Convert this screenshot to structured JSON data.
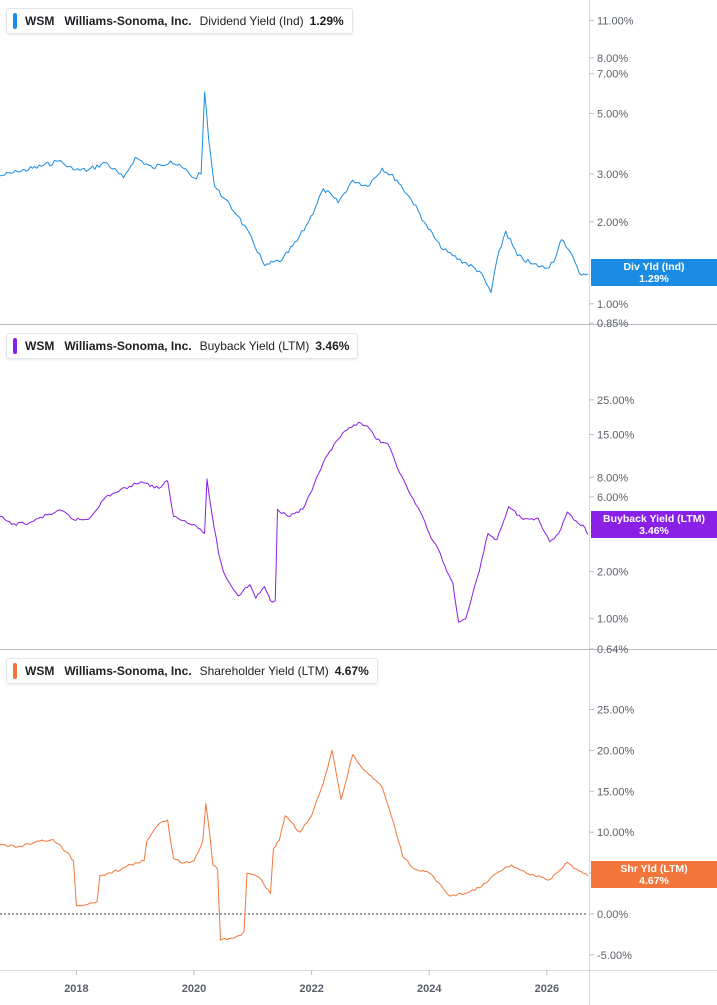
{
  "x_axis_labels": [
    "2018",
    "2020",
    "2022",
    "2024",
    "2026"
  ],
  "panels": [
    {
      "ticker": "WSM",
      "company": "Williams-Sonoma, Inc.",
      "metric": "Dividend Yield (Ind)",
      "value": "1.29%",
      "color": "#1b8ce3",
      "tag_line1": "Div Yld (Ind)",
      "tag_line2": "1.29%"
    },
    {
      "ticker": "WSM",
      "company": "Williams-Sonoma, Inc.",
      "metric": "Buyback Yield (LTM)",
      "value": "3.46%",
      "color": "#8a1fe6",
      "tag_line1": "Buyback Yield (LTM)",
      "tag_line2": "3.46%"
    },
    {
      "ticker": "WSM",
      "company": "Williams-Sonoma, Inc.",
      "metric": "Shareholder Yield (LTM)",
      "value": "4.67%",
      "color": "#f2763b",
      "tag_line1": "Shr Yld (LTM)",
      "tag_line2": "4.67%"
    }
  ],
  "chart_data": [
    {
      "type": "line",
      "title": "WSM Williams-Sonoma, Inc. Dividend Yield (Ind) 1.29%",
      "scale": "log",
      "yticks": [
        11,
        8,
        7,
        5,
        3,
        2,
        1,
        0.85
      ],
      "ytick_labels": [
        "11.00%",
        "8.00%",
        "7.00%",
        "5.00%",
        "3.00%",
        "2.00%",
        "1.00%",
        "0.85%"
      ],
      "ylim": [
        0.85,
        12
      ],
      "xlim": [
        2016.7,
        2026.7
      ],
      "series": [
        {
          "x": [
            2016.7,
            2017.0,
            2017.4,
            2017.7,
            2017.95,
            2018.2,
            2018.5,
            2018.8,
            2019.0,
            2019.3,
            2019.6,
            2019.9,
            2020.0,
            2020.12,
            2020.18,
            2020.25,
            2020.35,
            2020.5,
            2020.75,
            2021.0,
            2021.2,
            2021.5,
            2021.75,
            2021.95,
            2022.2,
            2022.45,
            2022.7,
            2022.95,
            2023.2,
            2023.45,
            2023.7,
            2023.95,
            2024.2,
            2024.4,
            2024.6,
            2024.85,
            2025.05,
            2025.15,
            2025.3,
            2025.5,
            2025.75,
            2026.0,
            2026.15,
            2026.25,
            2026.4,
            2026.55,
            2026.7
          ],
          "y": [
            2.95,
            3.05,
            3.2,
            3.35,
            3.1,
            3.1,
            3.3,
            2.9,
            3.45,
            3.15,
            3.35,
            3.05,
            2.9,
            3.0,
            6.0,
            4.0,
            2.7,
            2.45,
            2.1,
            1.7,
            1.38,
            1.45,
            1.7,
            2.0,
            2.65,
            2.35,
            2.85,
            2.7,
            3.15,
            2.85,
            2.4,
            1.95,
            1.6,
            1.5,
            1.42,
            1.32,
            1.1,
            1.45,
            1.85,
            1.5,
            1.4,
            1.35,
            1.48,
            1.72,
            1.55,
            1.3,
            1.29
          ]
        }
      ]
    },
    {
      "type": "line",
      "title": "WSM Williams-Sonoma, Inc. Buyback Yield (LTM) 3.46%",
      "scale": "log",
      "yticks": [
        25,
        15,
        8,
        6,
        2,
        1,
        0.64
      ],
      "ytick_labels": [
        "25.00%",
        "15.00%",
        "8.00%",
        "6.00%",
        "2.00%",
        "1.00%",
        "0.64%"
      ],
      "ylim": [
        0.64,
        35
      ],
      "xlim": [
        2016.7,
        2026.7
      ],
      "series": [
        {
          "x": [
            2016.7,
            2016.9,
            2017.2,
            2017.5,
            2017.75,
            2017.95,
            2018.2,
            2018.5,
            2018.9,
            2019.1,
            2019.4,
            2019.55,
            2019.65,
            2020.0,
            2020.18,
            2020.22,
            2020.3,
            2020.42,
            2020.5,
            2020.6,
            2020.75,
            2020.95,
            2021.05,
            2021.2,
            2021.3,
            2021.38,
            2021.42,
            2021.6,
            2021.85,
            2022.0,
            2022.2,
            2022.45,
            2022.6,
            2022.8,
            2022.95,
            2023.1,
            2023.3,
            2023.5,
            2023.65,
            2023.85,
            2024.0,
            2024.15,
            2024.3,
            2024.4,
            2024.5,
            2024.62,
            2024.75,
            2024.85,
            2025.0,
            2025.15,
            2025.35,
            2025.6,
            2025.85,
            2026.05,
            2026.2,
            2026.35,
            2026.5,
            2026.65,
            2026.7
          ],
          "y": [
            4.5,
            4.0,
            4.1,
            4.6,
            4.9,
            4.3,
            4.3,
            6.0,
            7.0,
            7.5,
            6.8,
            7.6,
            4.5,
            4.0,
            3.5,
            7.8,
            4.8,
            2.6,
            2.0,
            1.7,
            1.4,
            1.65,
            1.35,
            1.6,
            1.3,
            1.3,
            5.0,
            4.5,
            5.0,
            6.5,
            10.0,
            14.0,
            16.0,
            18.0,
            17.0,
            14.0,
            13.0,
            8.5,
            6.5,
            4.8,
            3.5,
            2.8,
            2.0,
            1.7,
            0.95,
            1.0,
            1.5,
            2.0,
            3.5,
            3.2,
            5.2,
            4.3,
            4.4,
            3.1,
            3.5,
            4.8,
            4.2,
            3.8,
            3.46
          ]
        }
      ]
    },
    {
      "type": "line",
      "title": "WSM Williams-Sonoma, Inc. Shareholder Yield (LTM) 4.67%",
      "scale": "linear",
      "yticks": [
        25,
        20,
        15,
        10,
        5,
        0,
        -5
      ],
      "ytick_labels": [
        "25.00%",
        "20.00%",
        "15.00%",
        "10.00%",
        "",
        "0.00%",
        "-5.00%"
      ],
      "ylim": [
        -6,
        28
      ],
      "reference_line": 0,
      "xlim": [
        2016.7,
        2026.7
      ],
      "series": [
        {
          "x": [
            2016.7,
            2017.0,
            2017.3,
            2017.6,
            2017.85,
            2017.95,
            2018.0,
            2018.2,
            2018.35,
            2018.4,
            2018.6,
            2018.85,
            2019.15,
            2019.2,
            2019.4,
            2019.55,
            2019.65,
            2019.8,
            2020.0,
            2020.15,
            2020.2,
            2020.28,
            2020.32,
            2020.4,
            2020.45,
            2020.6,
            2020.8,
            2020.85,
            2020.9,
            2021.1,
            2021.3,
            2021.35,
            2021.45,
            2021.55,
            2021.8,
            2022.0,
            2022.2,
            2022.35,
            2022.5,
            2022.7,
            2022.9,
            2023.05,
            2023.2,
            2023.4,
            2023.55,
            2023.75,
            2024.0,
            2024.2,
            2024.35,
            2024.6,
            2024.85,
            2025.0,
            2025.15,
            2025.4,
            2025.65,
            2025.9,
            2026.05,
            2026.2,
            2026.35,
            2026.5,
            2026.7
          ],
          "y": [
            8.5,
            8.2,
            8.8,
            9.1,
            7.5,
            6.5,
            1.0,
            1.2,
            1.5,
            4.7,
            5.0,
            5.8,
            6.5,
            9.0,
            11.0,
            11.5,
            6.8,
            6.2,
            6.5,
            9.0,
            13.5,
            9.0,
            6.0,
            5.5,
            -3.2,
            -3.0,
            -2.6,
            -2.2,
            5.0,
            4.5,
            2.5,
            8.0,
            9.0,
            12.0,
            10.0,
            12.0,
            16.0,
            20.0,
            14.0,
            19.5,
            17.5,
            16.5,
            15.5,
            11.0,
            7.0,
            5.5,
            5.0,
            3.5,
            2.2,
            2.5,
            3.2,
            4.0,
            5.0,
            6.0,
            5.0,
            4.5,
            4.2,
            5.2,
            6.3,
            5.5,
            4.67
          ]
        }
      ]
    }
  ]
}
